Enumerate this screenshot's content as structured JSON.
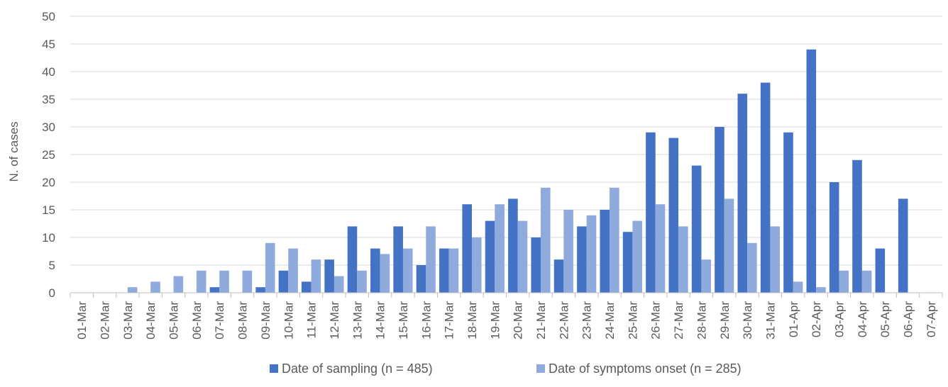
{
  "chart_data": {
    "type": "bar",
    "title": "",
    "xlabel": "",
    "ylabel": "N. of cases",
    "ylim": [
      0,
      50
    ],
    "yticks": [
      0,
      5,
      10,
      15,
      20,
      25,
      30,
      35,
      40,
      45,
      50
    ],
    "grid": true,
    "legend_position": "bottom",
    "categories": [
      "01-Mar",
      "02-Mar",
      "03-Mar",
      "04-Mar",
      "05-Mar",
      "06-Mar",
      "07-Mar",
      "08-Mar",
      "09-Mar",
      "10-Mar",
      "11-Mar",
      "12-Mar",
      "13-Mar",
      "14-Mar",
      "15-Mar",
      "16-Mar",
      "17-Mar",
      "18-Mar",
      "19-Mar",
      "20-Mar",
      "21-Mar",
      "22-Mar",
      "23-Mar",
      "24-Mar",
      "25-Mar",
      "26-Mar",
      "27-Mar",
      "28-Mar",
      "29-Mar",
      "30-Mar",
      "31-Mar",
      "01-Apr",
      "02-Apr",
      "03-Apr",
      "04-Apr",
      "05-Apr",
      "06-Apr",
      "07-Apr"
    ],
    "series": [
      {
        "name": "Date of sampling (n = 485)",
        "color": "#4472C4",
        "values": [
          0,
          0,
          0,
          0,
          0,
          0,
          1,
          0,
          1,
          4,
          2,
          6,
          12,
          8,
          12,
          5,
          8,
          16,
          13,
          17,
          10,
          6,
          12,
          15,
          11,
          29,
          28,
          23,
          30,
          36,
          38,
          29,
          44,
          20,
          24,
          8,
          17,
          0
        ]
      },
      {
        "name": "Date of symptoms onset (n = 285)",
        "color": "#8FAADC",
        "values": [
          0,
          0,
          1,
          2,
          3,
          4,
          4,
          4,
          9,
          8,
          6,
          3,
          4,
          7,
          8,
          12,
          8,
          10,
          16,
          13,
          19,
          15,
          14,
          19,
          13,
          16,
          12,
          6,
          17,
          9,
          12,
          2,
          1,
          4,
          4,
          0,
          0,
          0
        ]
      }
    ]
  }
}
